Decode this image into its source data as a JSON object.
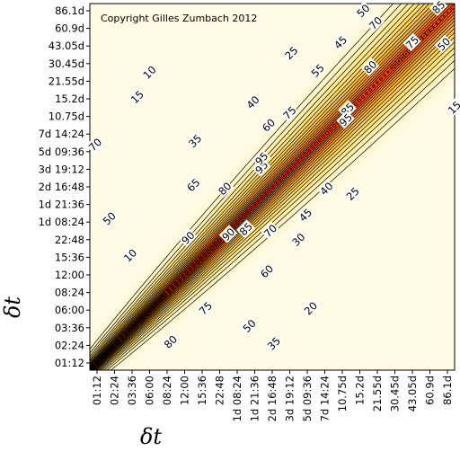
{
  "chart_data": {
    "type": "heatmap",
    "subtype": "contour",
    "annotation": "Copyright Gilles Zumbach 2012",
    "xlabel": "δt",
    "ylabel": "δt",
    "tick_labels": [
      "01:12",
      "02:24",
      "03:36",
      "06:00",
      "08:24",
      "12:00",
      "15:36",
      "22:48",
      "1d 08:24",
      "1d 21:36",
      "2d 16:48",
      "3d 19:12",
      "5d 09:36",
      "7d 14:24",
      "10.75d",
      "15.2d",
      "21.55d",
      "30.45d",
      "43.05d",
      "60.9d",
      "86.1d"
    ],
    "contour_levels": [
      10,
      15,
      20,
      25,
      30,
      35,
      40,
      45,
      50,
      55,
      60,
      65,
      70,
      75,
      80,
      85,
      90,
      95
    ],
    "color_scale": [
      "#fffbe6",
      "#ffe680",
      "#ffb400",
      "#ff5500",
      "#dd0000"
    ],
    "contour_labels": [
      {
        "text": "85",
        "x": 19.5,
        "y": 20.2
      },
      {
        "text": "50",
        "x": 15.2,
        "y": 20.0
      },
      {
        "text": "70",
        "x": 15.9,
        "y": 19.3
      },
      {
        "text": "75",
        "x": 18.0,
        "y": 18.2
      },
      {
        "text": "50",
        "x": 19.8,
        "y": 18.1
      },
      {
        "text": "80",
        "x": 15.6,
        "y": 16.8
      },
      {
        "text": "15",
        "x": 20.4,
        "y": 14.5
      },
      {
        "text": "25",
        "x": 11.1,
        "y": 17.6
      },
      {
        "text": "45",
        "x": 13.9,
        "y": 18.2
      },
      {
        "text": "55",
        "x": 12.6,
        "y": 16.6
      },
      {
        "text": "75",
        "x": 11.0,
        "y": 14.2
      },
      {
        "text": "85",
        "x": 14.3,
        "y": 14.4
      },
      {
        "text": "95",
        "x": 14.2,
        "y": 13.8
      },
      {
        "text": "40",
        "x": 8.9,
        "y": 14.8
      },
      {
        "text": "60",
        "x": 9.8,
        "y": 13.5
      },
      {
        "text": "10",
        "x": 3.0,
        "y": 16.5
      },
      {
        "text": "15",
        "x": 2.3,
        "y": 15.1
      },
      {
        "text": "35",
        "x": 5.6,
        "y": 12.6
      },
      {
        "text": "70",
        "x": -0.1,
        "y": 12.4
      },
      {
        "text": "95",
        "x": 9.4,
        "y": 11.1
      },
      {
        "text": "95",
        "x": 9.4,
        "y": 11.6
      },
      {
        "text": "65",
        "x": 5.5,
        "y": 10.1
      },
      {
        "text": "80",
        "x": 7.3,
        "y": 9.9
      },
      {
        "text": "40",
        "x": 13.1,
        "y": 9.9
      },
      {
        "text": "25",
        "x": 14.6,
        "y": 9.6
      },
      {
        "text": "50",
        "x": 0.7,
        "y": 8.2
      },
      {
        "text": "45",
        "x": 11.9,
        "y": 8.4
      },
      {
        "text": "90",
        "x": 5.2,
        "y": 7.1
      },
      {
        "text": "90",
        "x": 7.5,
        "y": 7.3
      },
      {
        "text": "85",
        "x": 8.5,
        "y": 7.6
      },
      {
        "text": "70",
        "x": 9.9,
        "y": 7.5
      },
      {
        "text": "30",
        "x": 11.5,
        "y": 7.0
      },
      {
        "text": "10",
        "x": 1.9,
        "y": 6.1
      },
      {
        "text": "60",
        "x": 9.7,
        "y": 5.2
      },
      {
        "text": "75",
        "x": 6.2,
        "y": 3.1
      },
      {
        "text": "20",
        "x": 12.2,
        "y": 3.1
      },
      {
        "text": "50",
        "x": 8.7,
        "y": 2.1
      },
      {
        "text": "35",
        "x": 10.1,
        "y": 1.1
      },
      {
        "text": "80",
        "x": 4.2,
        "y": 1.2
      }
    ]
  }
}
